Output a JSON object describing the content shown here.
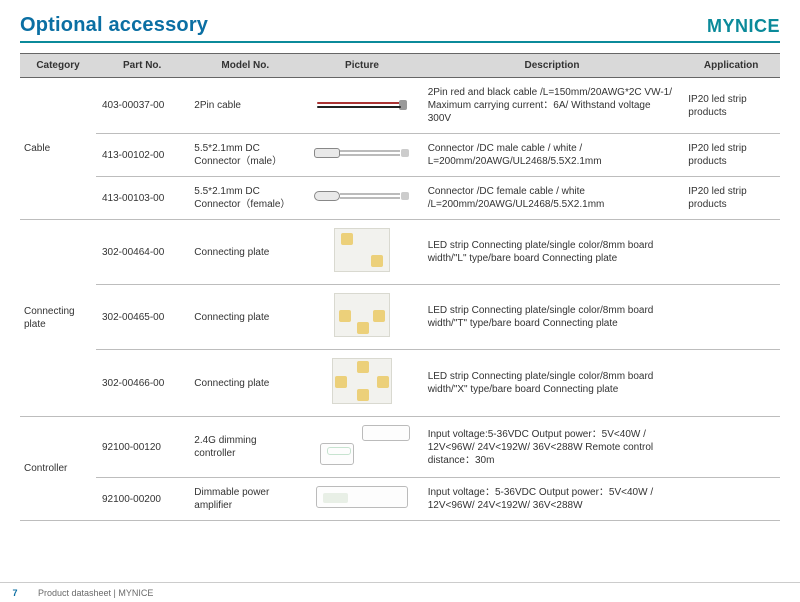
{
  "header": {
    "title": "Optional accessory",
    "brand": "MYNICE"
  },
  "columns": [
    "Category",
    "Part No.",
    "Model No.",
    "Picture",
    "Description",
    "Application"
  ],
  "groups": [
    {
      "category": "Cable",
      "rows": [
        {
          "part": "403-00037-00",
          "model": "2Pin cable",
          "desc": "2Pin red and black cable /L=150mm/20AWG*2C VW-1/ Maximum carrying current：6A/ Withstand voltage 300V",
          "app": "IP20 led strip products",
          "pic": "cable2pin"
        },
        {
          "part": "413-00102-00",
          "model": "5.5*2.1mm DC Connector（male）",
          "desc": "Connector /DC male cable / white / L=200mm/20AWG/UL2468/5.5X2.1mm",
          "app": "IP20 led strip products",
          "pic": "dcmale"
        },
        {
          "part": "413-00103-00",
          "model": "5.5*2.1mm DC Connector（female）",
          "desc": "Connector /DC female cable / white /L=200mm/20AWG/UL2468/5.5X2.1mm",
          "app": "IP20 led strip products",
          "pic": "dcfemale"
        }
      ]
    },
    {
      "category": "Connecting plate",
      "rows": [
        {
          "part": "302-00464-00",
          "model": "Connecting plate",
          "desc": "LED strip Connecting plate/single color/8mm board width/\"L\" type/bare board Connecting plate",
          "app": "",
          "pic": "plateL"
        },
        {
          "part": "302-00465-00",
          "model": "Connecting plate",
          "desc": "LED strip Connecting plate/single color/8mm board width/\"T\" type/bare board Connecting plate",
          "app": "",
          "pic": "plateT"
        },
        {
          "part": "302-00466-00",
          "model": "Connecting plate",
          "desc": "LED strip Connecting plate/single color/8mm board width/\"X\" type/bare board Connecting plate",
          "app": "",
          "pic": "plateX"
        }
      ]
    },
    {
      "category": "Controller",
      "rows": [
        {
          "part": "92100-00120",
          "model": "2.4G dimming controller",
          "desc": "Input voltage:5-36VDC\nOutput power：5V<40W / 12V<96W/ 24V<192W/ 36V<288W\nRemote control distance：30m",
          "app": "",
          "pic": "dimmer"
        },
        {
          "part": "92100-00200",
          "model": "Dimmable power amplifier",
          "desc": "Input voltage：5-36VDC\nOutput power：5V<40W / 12V<96W/ 24V<192W/ 36V<288W",
          "app": "",
          "pic": "amp"
        }
      ]
    }
  ],
  "footer": {
    "page": "7",
    "text": "Product datasheet | MYNICE"
  }
}
